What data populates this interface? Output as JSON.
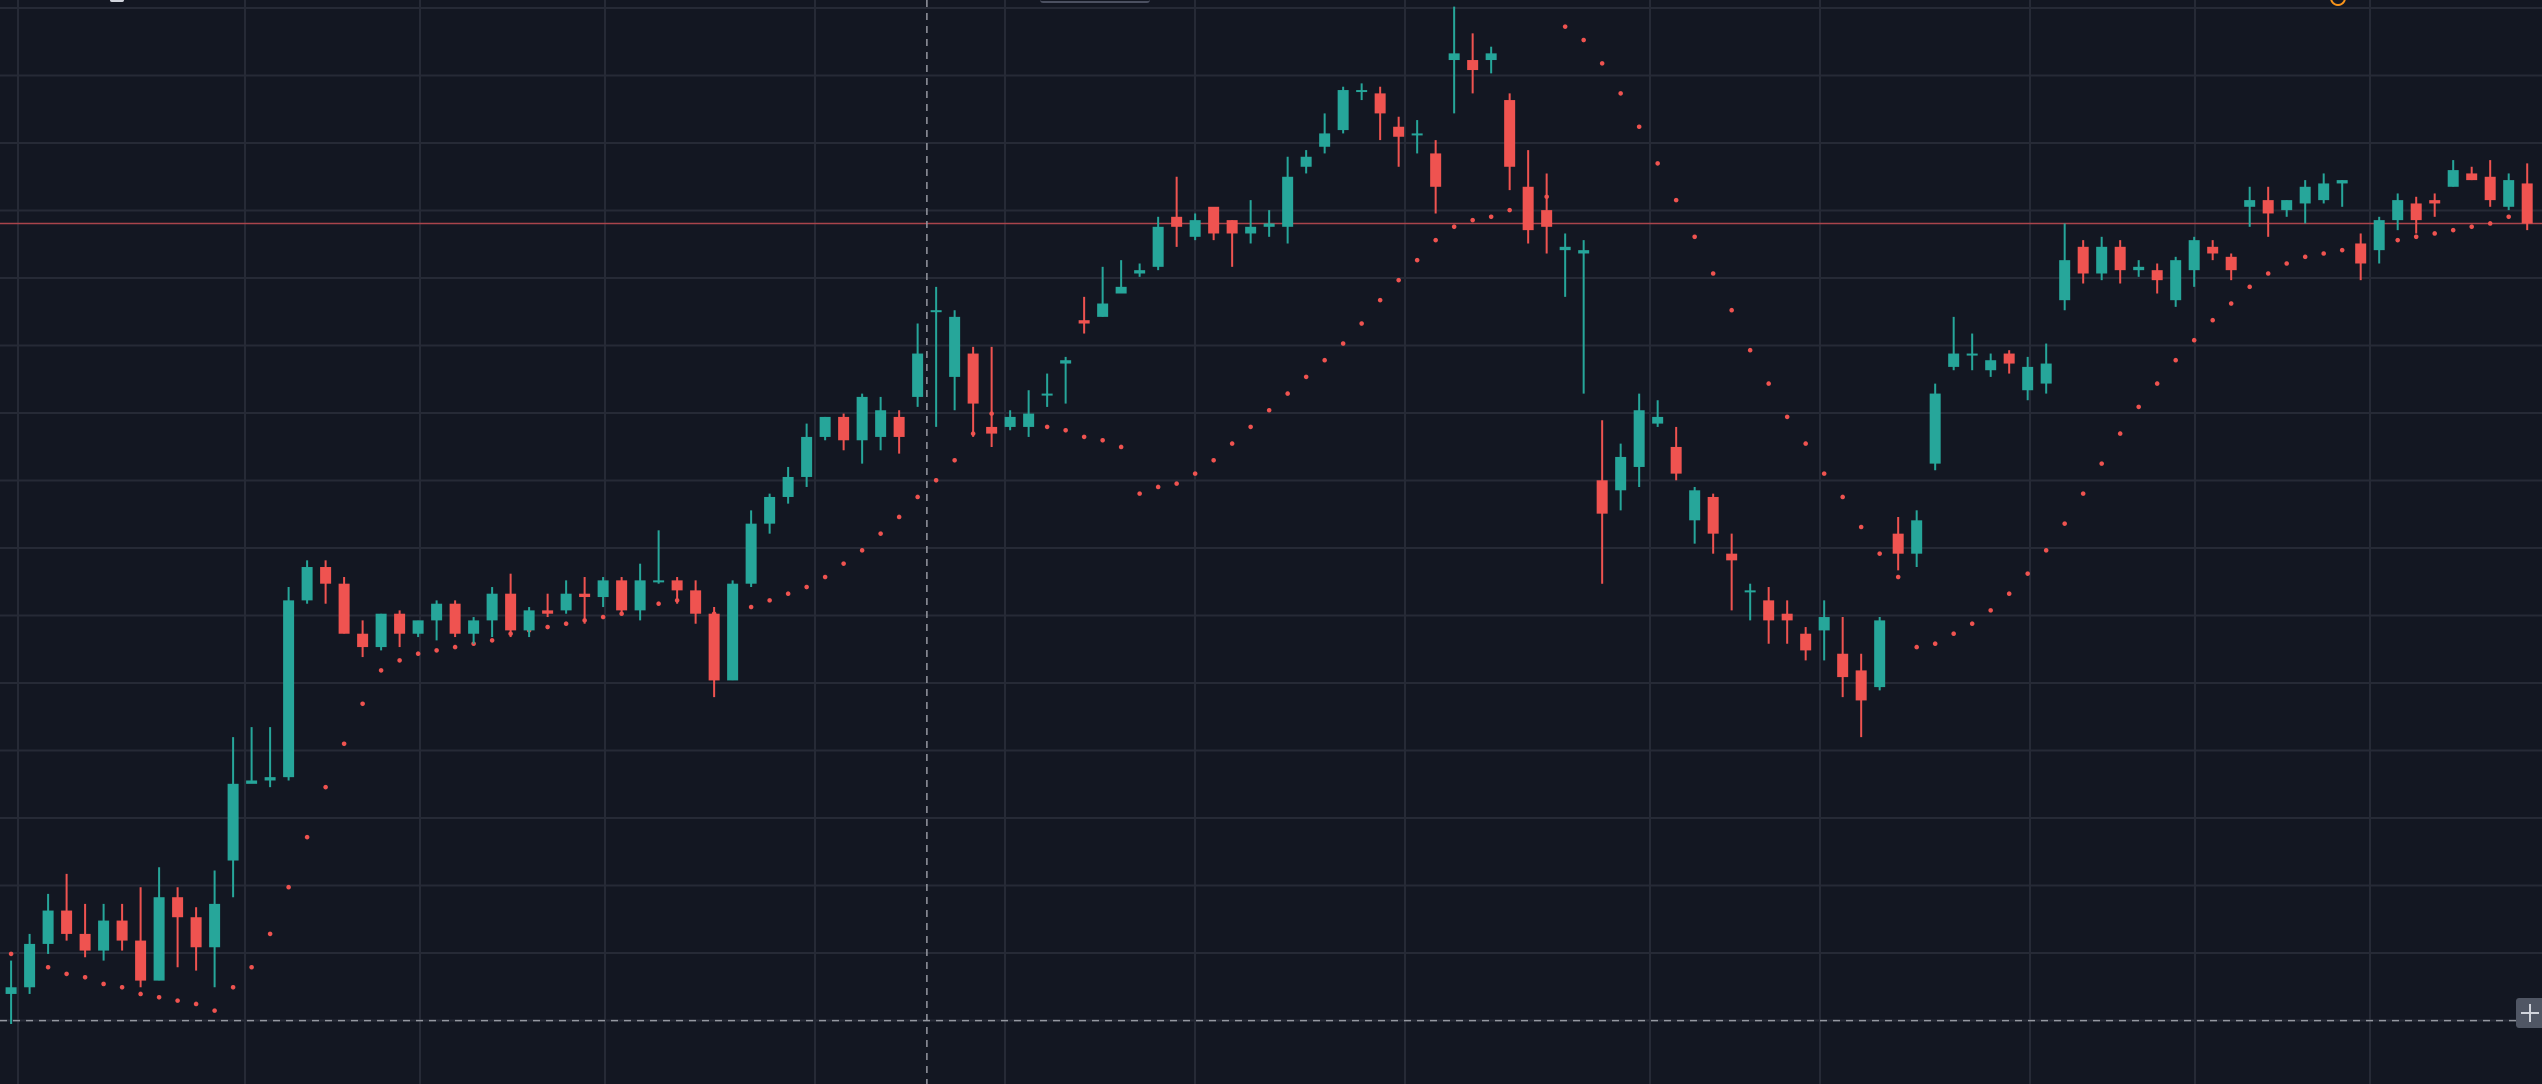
{
  "chart_data": {
    "type": "candlestick",
    "indicator": "parabolic-sar",
    "grid": true,
    "colors": {
      "background": "#131722",
      "grid": "#262a36",
      "up": "#26a69a",
      "down": "#ef5350",
      "sar": "#ef5350",
      "price_line": "#a9444b",
      "crosshair": "#9598a1"
    },
    "candles": [
      [
        1,
        20,
        22,
        30,
        11
      ],
      [
        2,
        22,
        35,
        38,
        20
      ],
      [
        3,
        35,
        45,
        50,
        32
      ],
      [
        4,
        45,
        38,
        56,
        36
      ],
      [
        5,
        38,
        33,
        47,
        31
      ],
      [
        6,
        33,
        42,
        47,
        30
      ],
      [
        7,
        42,
        36,
        47,
        33
      ],
      [
        8,
        36,
        24,
        52,
        22
      ],
      [
        9,
        24,
        49,
        58,
        24
      ],
      [
        10,
        49,
        43,
        52,
        28
      ],
      [
        11,
        43,
        34,
        46,
        27
      ],
      [
        12,
        34,
        47,
        57,
        22
      ],
      [
        13,
        60,
        83,
        97,
        49
      ],
      [
        14,
        83,
        84,
        100,
        84
      ],
      [
        15,
        84,
        85,
        100,
        82
      ],
      [
        16,
        85,
        138,
        142,
        84
      ],
      [
        17,
        138,
        148,
        150,
        137
      ],
      [
        18,
        148,
        143,
        150,
        137
      ],
      [
        19,
        143,
        128,
        145,
        128
      ],
      [
        20,
        128,
        124,
        132,
        121
      ],
      [
        21,
        124,
        134,
        134,
        123
      ],
      [
        22,
        134,
        128,
        135,
        124
      ],
      [
        23,
        128,
        132,
        132,
        127
      ],
      [
        24,
        132,
        137,
        138,
        126
      ],
      [
        25,
        137,
        128,
        138,
        127
      ],
      [
        26,
        128,
        132,
        133,
        125
      ],
      [
        27,
        132,
        140,
        142,
        127
      ],
      [
        28,
        140,
        129,
        146,
        127
      ],
      [
        29,
        129,
        135,
        136,
        127
      ],
      [
        30,
        135,
        134,
        140,
        133
      ],
      [
        31,
        135,
        140,
        144,
        134
      ],
      [
        32,
        140,
        139,
        145,
        131
      ],
      [
        33,
        139,
        144,
        145,
        136
      ],
      [
        34,
        144,
        135,
        145,
        134
      ],
      [
        35,
        135,
        144,
        149,
        132
      ],
      [
        36,
        144,
        144,
        159,
        143
      ],
      [
        37,
        144,
        141,
        145,
        137
      ],
      [
        38,
        141,
        134,
        144,
        131
      ],
      [
        39,
        134,
        114,
        136,
        109
      ],
      [
        40,
        114,
        143,
        144,
        114
      ],
      [
        41,
        143,
        161,
        165,
        142
      ],
      [
        42,
        161,
        169,
        170,
        158
      ],
      [
        43,
        169,
        175,
        178,
        167
      ],
      [
        44,
        175,
        187,
        191,
        172
      ],
      [
        45,
        187,
        193,
        193,
        186
      ],
      [
        46,
        193,
        186,
        194,
        183
      ],
      [
        47,
        186,
        199,
        200,
        179
      ],
      [
        48,
        187,
        195,
        199,
        183
      ],
      [
        49,
        193,
        187,
        195,
        182
      ],
      [
        50,
        199,
        212,
        221,
        196
      ],
      [
        51,
        225,
        225,
        232,
        190
      ],
      [
        52,
        205,
        223,
        225,
        195
      ],
      [
        53,
        212,
        197,
        214,
        187
      ],
      [
        54,
        190,
        188,
        214,
        184
      ],
      [
        55,
        190,
        193,
        195,
        189
      ],
      [
        56,
        190,
        194,
        201,
        187
      ],
      [
        57,
        200,
        200,
        206,
        196
      ],
      [
        58,
        209,
        210,
        211,
        197
      ],
      [
        59,
        222,
        221,
        229,
        218
      ],
      [
        60,
        223,
        227,
        238,
        223
      ],
      [
        61,
        230,
        232,
        240,
        230
      ],
      [
        62,
        236,
        237,
        239,
        235
      ],
      [
        63,
        238,
        250,
        253,
        237
      ],
      [
        64,
        253,
        250,
        265,
        244
      ],
      [
        65,
        247,
        252,
        254,
        246
      ],
      [
        66,
        256,
        248,
        255,
        246
      ],
      [
        67,
        252,
        248,
        252,
        238
      ],
      [
        68,
        248,
        250,
        258,
        245
      ],
      [
        69,
        250,
        251,
        255,
        247
      ],
      [
        70,
        250,
        265,
        271,
        245
      ],
      [
        71,
        268,
        271,
        273,
        266
      ],
      [
        72,
        274,
        278,
        284,
        272
      ],
      [
        73,
        279,
        291,
        292,
        278
      ],
      [
        74,
        291,
        291,
        293,
        288
      ],
      [
        75,
        290,
        284,
        292,
        276
      ],
      [
        76,
        280,
        277,
        283,
        268
      ],
      [
        77,
        278,
        278,
        282,
        272
      ],
      [
        78,
        272,
        262,
        276,
        254
      ],
      [
        79,
        300,
        302,
        316,
        284
      ],
      [
        80,
        300,
        297,
        308,
        290
      ],
      [
        81,
        300,
        302,
        304,
        296
      ],
      [
        82,
        288,
        268,
        290,
        261
      ],
      [
        83,
        262,
        249,
        273,
        245
      ],
      [
        84,
        255,
        250,
        266,
        242
      ],
      [
        85,
        243,
        244,
        248,
        229
      ],
      [
        86,
        242,
        243,
        246,
        200
      ],
      [
        87,
        174,
        164,
        192,
        143
      ],
      [
        88,
        171,
        181,
        185,
        165
      ],
      [
        89,
        178,
        195,
        200,
        172
      ],
      [
        90,
        191,
        193,
        198,
        190
      ],
      [
        91,
        184,
        176,
        190,
        174
      ],
      [
        92,
        162,
        171,
        172,
        155
      ],
      [
        93,
        169,
        158,
        170,
        152
      ],
      [
        94,
        152,
        150,
        158,
        135
      ],
      [
        95,
        141,
        141,
        143,
        132
      ],
      [
        96,
        138,
        132,
        142,
        125
      ],
      [
        97,
        134,
        132,
        138,
        125
      ],
      [
        98,
        128,
        123,
        130,
        120
      ],
      [
        99,
        129,
        133,
        138,
        120
      ],
      [
        100,
        122,
        115,
        133,
        109
      ],
      [
        101,
        117,
        108,
        122,
        97
      ],
      [
        102,
        112,
        132,
        133,
        111
      ],
      [
        103,
        158,
        152,
        163,
        147
      ],
      [
        104,
        152,
        162,
        165,
        148
      ],
      [
        105,
        179,
        200,
        203,
        177
      ],
      [
        106,
        208,
        212,
        223,
        207
      ],
      [
        107,
        212,
        212,
        218,
        207
      ],
      [
        108,
        207,
        210,
        212,
        205
      ],
      [
        109,
        212,
        209,
        213,
        206
      ],
      [
        110,
        201,
        208,
        211,
        198
      ],
      [
        111,
        203,
        209,
        215,
        200
      ],
      [
        112,
        228,
        240,
        251,
        225
      ],
      [
        113,
        244,
        236,
        246,
        233
      ],
      [
        114,
        236,
        244,
        247,
        234
      ],
      [
        115,
        244,
        237,
        246,
        233
      ],
      [
        116,
        237,
        238,
        240,
        235
      ],
      [
        117,
        237,
        234,
        239,
        230
      ],
      [
        118,
        228,
        240,
        241,
        226
      ],
      [
        119,
        237,
        246,
        247,
        232
      ],
      [
        120,
        244,
        242,
        246,
        240
      ],
      [
        121,
        241,
        237,
        242,
        234
      ],
      [
        122,
        256,
        258,
        262,
        250
      ],
      [
        123,
        258,
        254,
        262,
        247
      ],
      [
        124,
        255,
        258,
        258,
        253
      ],
      [
        125,
        257,
        262,
        264,
        251
      ],
      [
        126,
        258,
        263,
        266,
        257
      ],
      [
        127,
        263,
        264,
        264,
        256
      ],
      [
        128,
        245,
        239,
        248,
        234
      ],
      [
        129,
        243,
        252,
        253,
        239
      ],
      [
        130,
        252,
        258,
        260,
        249
      ],
      [
        131,
        257,
        252,
        259,
        248
      ],
      [
        132,
        258,
        257,
        260,
        253
      ],
      [
        133,
        262,
        267,
        270,
        262
      ],
      [
        134,
        266,
        264,
        268,
        264
      ],
      [
        135,
        265,
        258,
        270,
        256
      ],
      [
        136,
        256,
        264,
        266,
        255
      ],
      [
        137,
        263,
        251,
        269,
        249
      ]
    ],
    "sar": [
      [
        1,
        32
      ],
      [
        2,
        30
      ],
      [
        3,
        28
      ],
      [
        4,
        26
      ],
      [
        5,
        25
      ],
      [
        6,
        23
      ],
      [
        7,
        22
      ],
      [
        8,
        20
      ],
      [
        9,
        19
      ],
      [
        10,
        18
      ],
      [
        11,
        17
      ],
      [
        12,
        15
      ],
      [
        13,
        22
      ],
      [
        14,
        28
      ],
      [
        15,
        38
      ],
      [
        16,
        52
      ],
      [
        17,
        67
      ],
      [
        18,
        82
      ],
      [
        19,
        95
      ],
      [
        20,
        107
      ],
      [
        21,
        117
      ],
      [
        22,
        120
      ],
      [
        23,
        122
      ],
      [
        24,
        123
      ],
      [
        25,
        124
      ],
      [
        26,
        125
      ],
      [
        27,
        126
      ],
      [
        28,
        128
      ],
      [
        29,
        129
      ],
      [
        30,
        130
      ],
      [
        31,
        131
      ],
      [
        32,
        132
      ],
      [
        33,
        133
      ],
      [
        34,
        134
      ],
      [
        35,
        136
      ],
      [
        36,
        137
      ],
      [
        37,
        138
      ],
      [
        38,
        140
      ],
      [
        39,
        134
      ],
      [
        40,
        135
      ],
      [
        41,
        136
      ],
      [
        42,
        138
      ],
      [
        43,
        140
      ],
      [
        44,
        142
      ],
      [
        45,
        145
      ],
      [
        46,
        149
      ],
      [
        47,
        153
      ],
      [
        48,
        158
      ],
      [
        49,
        163
      ],
      [
        50,
        169
      ],
      [
        51,
        174
      ],
      [
        52,
        180
      ],
      [
        53,
        188
      ],
      [
        54,
        194
      ],
      [
        55,
        192
      ],
      [
        56,
        191
      ],
      [
        57,
        190
      ],
      [
        58,
        189
      ],
      [
        59,
        187
      ],
      [
        60,
        186
      ],
      [
        61,
        184
      ],
      [
        62,
        170
      ],
      [
        63,
        172
      ],
      [
        64,
        173
      ],
      [
        65,
        176
      ],
      [
        66,
        180
      ],
      [
        67,
        185
      ],
      [
        68,
        190
      ],
      [
        69,
        195
      ],
      [
        70,
        200
      ],
      [
        71,
        205
      ],
      [
        72,
        210
      ],
      [
        73,
        215
      ],
      [
        74,
        221
      ],
      [
        75,
        228
      ],
      [
        76,
        234
      ],
      [
        77,
        240
      ],
      [
        78,
        246
      ],
      [
        79,
        250
      ],
      [
        80,
        252
      ],
      [
        81,
        253
      ],
      [
        82,
        255
      ],
      [
        83,
        257
      ],
      [
        84,
        259
      ],
      [
        85,
        310
      ],
      [
        86,
        306
      ],
      [
        87,
        299
      ],
      [
        88,
        290
      ],
      [
        89,
        280
      ],
      [
        90,
        269
      ],
      [
        91,
        258
      ],
      [
        92,
        247
      ],
      [
        93,
        236
      ],
      [
        94,
        225
      ],
      [
        95,
        213
      ],
      [
        96,
        203
      ],
      [
        97,
        193
      ],
      [
        98,
        185
      ],
      [
        99,
        176
      ],
      [
        100,
        169
      ],
      [
        101,
        160
      ],
      [
        102,
        152
      ],
      [
        103,
        145
      ],
      [
        104,
        124
      ],
      [
        105,
        125
      ],
      [
        106,
        128
      ],
      [
        107,
        131
      ],
      [
        108,
        135
      ],
      [
        109,
        140
      ],
      [
        110,
        146
      ],
      [
        111,
        153
      ],
      [
        112,
        161
      ],
      [
        113,
        170
      ],
      [
        114,
        179
      ],
      [
        115,
        188
      ],
      [
        116,
        196
      ],
      [
        117,
        203
      ],
      [
        118,
        210
      ],
      [
        119,
        216
      ],
      [
        120,
        222
      ],
      [
        121,
        227
      ],
      [
        122,
        232
      ],
      [
        123,
        236
      ],
      [
        124,
        239
      ],
      [
        125,
        241
      ],
      [
        126,
        242
      ],
      [
        127,
        243
      ],
      [
        128,
        244
      ],
      [
        129,
        245
      ],
      [
        130,
        246
      ],
      [
        131,
        247
      ],
      [
        132,
        248
      ],
      [
        133,
        249
      ],
      [
        134,
        250
      ],
      [
        135,
        251
      ],
      [
        136,
        253
      ],
      [
        137,
        256
      ]
    ],
    "price_line": 251,
    "crosshair": {
      "x": 50.5,
      "y": 12
    },
    "xlim": [
      0.4,
      137.8
    ],
    "ylim": [
      -7,
      318
    ]
  }
}
